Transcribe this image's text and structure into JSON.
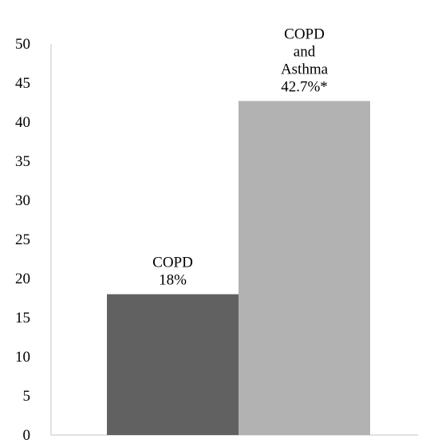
{
  "chart_data": {
    "type": "bar",
    "title": "",
    "xlabel": "",
    "ylabel": "",
    "ylim": [
      0,
      50
    ],
    "yticks": [
      0,
      5,
      10,
      15,
      20,
      25,
      30,
      35,
      40,
      45,
      50
    ],
    "grid": false,
    "legend": "none",
    "categories": [
      "COPD",
      "COPD and Asthma"
    ],
    "values": [
      18,
      42.7
    ],
    "data_labels": [
      [
        "COPD",
        "18%"
      ],
      [
        "COPD",
        "and",
        "Asthma",
        "42.7%*"
      ]
    ],
    "colors": [
      "#616161",
      "#b2b2b2"
    ],
    "axis_color": "#d9d9d9"
  }
}
